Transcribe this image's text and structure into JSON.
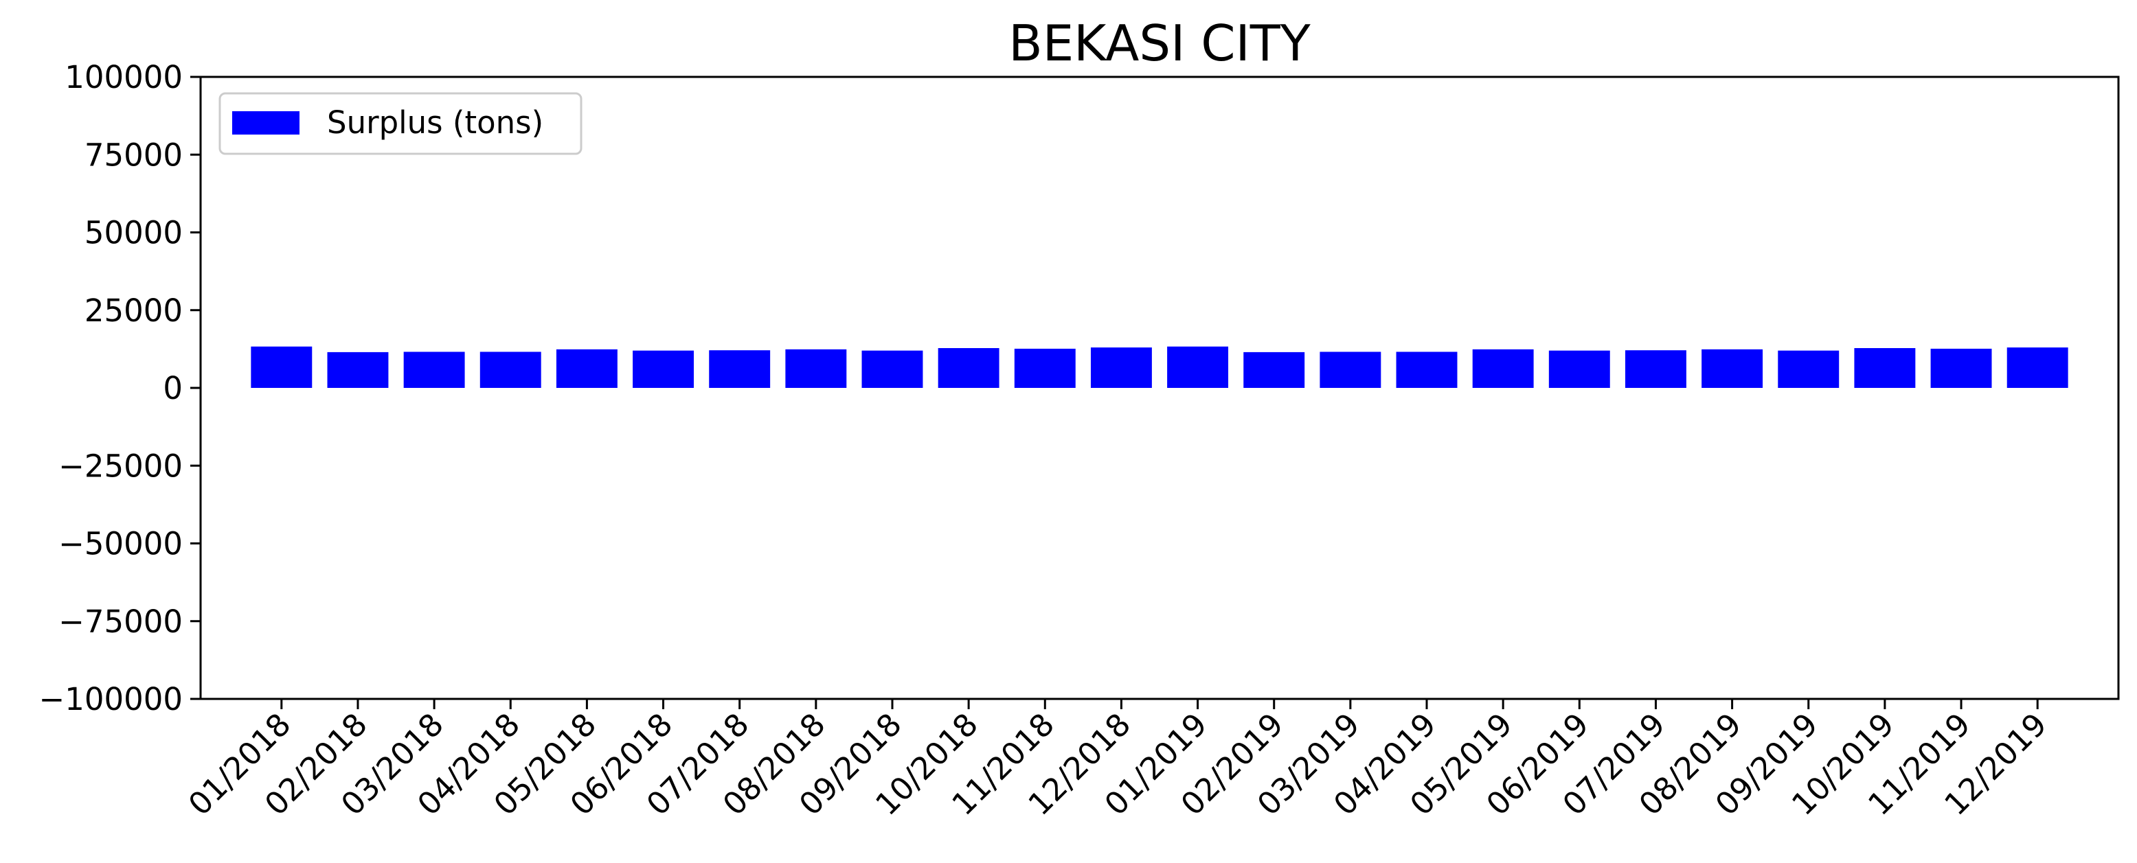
{
  "chart_data": {
    "type": "bar",
    "title": "BEKASI CITY",
    "xlabel": "",
    "ylabel": "",
    "ylim": [
      -100000,
      100000
    ],
    "yticks": [
      "100000",
      "75000",
      "50000",
      "25000",
      "0",
      "−25000",
      "−50000",
      "−75000",
      "−100000"
    ],
    "ytick_values": [
      100000,
      75000,
      50000,
      25000,
      0,
      -25000,
      -50000,
      -75000,
      -100000
    ],
    "categories": [
      "01/2018",
      "02/2018",
      "03/2018",
      "04/2018",
      "05/2018",
      "06/2018",
      "07/2018",
      "08/2018",
      "09/2018",
      "10/2018",
      "11/2018",
      "12/2018",
      "01/2019",
      "02/2019",
      "03/2019",
      "04/2019",
      "05/2019",
      "06/2019",
      "07/2019",
      "08/2019",
      "09/2019",
      "10/2019",
      "11/2019",
      "12/2019"
    ],
    "series": [
      {
        "name": "Surplus (tons)",
        "color": "#0000ff",
        "values": [
          13300,
          11500,
          11600,
          11600,
          12400,
          12000,
          12100,
          12400,
          12000,
          12800,
          12600,
          13000,
          13300,
          11500,
          11600,
          11600,
          12400,
          12000,
          12100,
          12400,
          12000,
          12800,
          12600,
          13000
        ]
      }
    ],
    "legend_position": "top-left",
    "grid": false
  }
}
